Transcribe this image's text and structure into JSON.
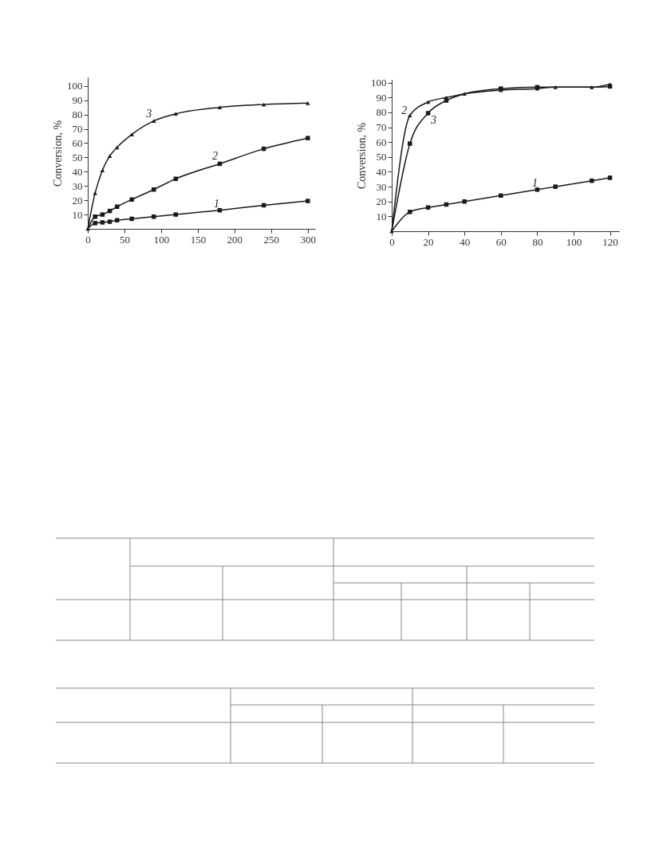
{
  "chart_data": [
    {
      "type": "line",
      "ylabel": "Conversion, %",
      "xlim": [
        0,
        310
      ],
      "xticks": [
        0,
        50,
        100,
        150,
        200,
        250,
        300
      ],
      "ylim": [
        0,
        106
      ],
      "yticks": [
        10,
        20,
        30,
        40,
        50,
        60,
        70,
        80,
        90,
        100
      ],
      "grid": false,
      "legend": false,
      "line_style": "solid",
      "x": [
        0,
        10,
        20,
        30,
        40,
        60,
        90,
        120,
        180,
        240,
        300
      ],
      "series": [
        {
          "name": "3",
          "color": "#1a1a1a",
          "marker": "triangle",
          "values": [
            0,
            25,
            41,
            51,
            57,
            66,
            75.5,
            80.5,
            85,
            87,
            88
          ]
        },
        {
          "name": "2",
          "color": "#1a1a1a",
          "marker": "square",
          "values": [
            0,
            8.5,
            10,
            12.5,
            15.5,
            20.5,
            27.5,
            35,
            45.5,
            56,
            63.5
          ]
        },
        {
          "name": "1",
          "color": "#1a1a1a",
          "marker": "square",
          "values": [
            0,
            4,
            4.5,
            5,
            6,
            7,
            8.5,
            10,
            13,
            16.5,
            19.5
          ]
        }
      ]
    },
    {
      "type": "line",
      "ylabel": "Conversion, %",
      "xlim": [
        0,
        125
      ],
      "xticks": [
        0,
        20,
        40,
        60,
        80,
        100,
        120
      ],
      "ylim": [
        0,
        102
      ],
      "yticks": [
        10,
        20,
        30,
        40,
        50,
        60,
        70,
        80,
        90,
        100
      ],
      "grid": false,
      "legend": false,
      "line_style": "solid",
      "x": [
        0,
        10,
        20,
        30,
        40,
        60,
        80,
        90,
        110,
        120
      ],
      "series": [
        {
          "name": "2",
          "color": "#1a1a1a",
          "marker": "triangle",
          "values": [
            0,
            78,
            87,
            90,
            92.5,
            95,
            96,
            97,
            97,
            99
          ]
        },
        {
          "name": "3",
          "color": "#1a1a1a",
          "marker": "square",
          "values": [
            0,
            59,
            79.5,
            88,
            92.5,
            96,
            97,
            97,
            97,
            97.5
          ]
        },
        {
          "name": "1",
          "color": "#1a1a1a",
          "marker": "square",
          "values": [
            0,
            13,
            16,
            18,
            20,
            24,
            28,
            30,
            34,
            36
          ]
        }
      ]
    }
  ]
}
